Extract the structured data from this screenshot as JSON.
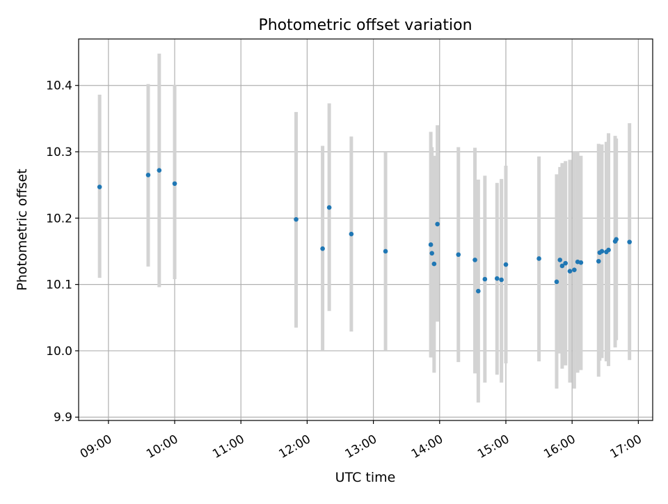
{
  "chart_data": {
    "type": "scatter",
    "title": "Photometric offset variation",
    "xlabel": "UTC time",
    "ylabel": "Photometric offset",
    "x_ticks": [
      "09:00",
      "10:00",
      "11:00",
      "12:00",
      "13:00",
      "14:00",
      "15:00",
      "16:00",
      "17:00"
    ],
    "y_ticks": [
      "9.9",
      "10.0",
      "10.1",
      "10.2",
      "10.3",
      "10.4"
    ],
    "xlim": [
      "08:33",
      "17:13"
    ],
    "ylim": [
      9.895,
      10.47
    ],
    "grid": true,
    "colors": {
      "point": "#1f77b4",
      "errorbar": "#d3d3d3",
      "grid": "#b0b0b0"
    },
    "points": [
      {
        "t": "08:52",
        "y": 10.247,
        "lo": 10.11,
        "hi": 10.386
      },
      {
        "t": "09:36",
        "y": 10.265,
        "lo": 10.127,
        "hi": 10.402
      },
      {
        "t": "09:46",
        "y": 10.272,
        "lo": 10.096,
        "hi": 10.448
      },
      {
        "t": "10:00",
        "y": 10.252,
        "lo": 10.108,
        "hi": 10.401
      },
      {
        "t": "11:50",
        "y": 10.198,
        "lo": 10.035,
        "hi": 10.36
      },
      {
        "t": "12:14",
        "y": 10.154,
        "lo": 10.0,
        "hi": 10.309
      },
      {
        "t": "12:20",
        "y": 10.216,
        "lo": 10.06,
        "hi": 10.373
      },
      {
        "t": "12:40",
        "y": 10.176,
        "lo": 10.029,
        "hi": 10.323
      },
      {
        "t": "13:11",
        "y": 10.15,
        "lo": 10.001,
        "hi": 10.299
      },
      {
        "t": "13:52",
        "y": 10.16,
        "lo": 9.99,
        "hi": 10.33
      },
      {
        "t": "13:53",
        "y": 10.147,
        "lo": 9.995,
        "hi": 10.307
      },
      {
        "t": "13:55",
        "y": 10.131,
        "lo": 9.967,
        "hi": 10.294
      },
      {
        "t": "13:58",
        "y": 10.191,
        "lo": 10.044,
        "hi": 10.34
      },
      {
        "t": "14:17",
        "y": 10.145,
        "lo": 9.983,
        "hi": 10.307
      },
      {
        "t": "14:32",
        "y": 10.137,
        "lo": 9.966,
        "hi": 10.306
      },
      {
        "t": "14:35",
        "y": 10.09,
        "lo": 9.922,
        "hi": 10.258
      },
      {
        "t": "14:41",
        "y": 10.108,
        "lo": 9.952,
        "hi": 10.264
      },
      {
        "t": "14:52",
        "y": 10.109,
        "lo": 9.964,
        "hi": 10.253
      },
      {
        "t": "14:56",
        "y": 10.107,
        "lo": 9.952,
        "hi": 10.259
      },
      {
        "t": "15:00",
        "y": 10.13,
        "lo": 9.981,
        "hi": 10.279
      },
      {
        "t": "15:30",
        "y": 10.139,
        "lo": 9.984,
        "hi": 10.293
      },
      {
        "t": "15:46",
        "y": 10.104,
        "lo": 9.943,
        "hi": 10.266
      },
      {
        "t": "15:49",
        "y": 10.137,
        "lo": 9.996,
        "hi": 10.277
      },
      {
        "t": "15:51",
        "y": 10.128,
        "lo": 9.973,
        "hi": 10.283
      },
      {
        "t": "15:54",
        "y": 10.132,
        "lo": 9.978,
        "hi": 10.286
      },
      {
        "t": "15:58",
        "y": 10.12,
        "lo": 9.952,
        "hi": 10.288
      },
      {
        "t": "16:02",
        "y": 10.122,
        "lo": 9.943,
        "hi": 10.301
      },
      {
        "t": "16:05",
        "y": 10.134,
        "lo": 9.967,
        "hi": 10.301
      },
      {
        "t": "16:08",
        "y": 10.133,
        "lo": 9.971,
        "hi": 10.294
      },
      {
        "t": "16:24",
        "y": 10.135,
        "lo": 9.961,
        "hi": 10.312
      },
      {
        "t": "16:25",
        "y": 10.148,
        "lo": 9.985,
        "hi": 10.311
      },
      {
        "t": "16:27",
        "y": 10.15,
        "lo": 9.989,
        "hi": 10.311
      },
      {
        "t": "16:31",
        "y": 10.149,
        "lo": 9.984,
        "hi": 10.315
      },
      {
        "t": "16:33",
        "y": 10.152,
        "lo": 9.977,
        "hi": 10.328
      },
      {
        "t": "16:39",
        "y": 10.165,
        "lo": 10.005,
        "hi": 10.324
      },
      {
        "t": "16:40",
        "y": 10.168,
        "lo": 10.016,
        "hi": 10.32
      },
      {
        "t": "16:52",
        "y": 10.164,
        "lo": 9.986,
        "hi": 10.343
      }
    ]
  }
}
